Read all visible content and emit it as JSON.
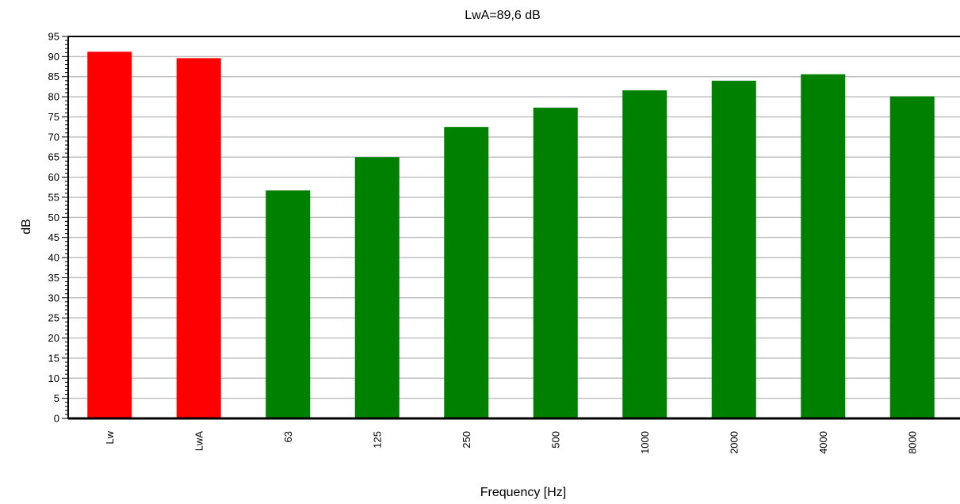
{
  "chart_data": {
    "type": "bar",
    "title": "LwA=89,6 dB",
    "xlabel": "Frequency [Hz]",
    "ylabel": "dB",
    "ylim": [
      0,
      95
    ],
    "y_ticks": [
      0,
      5,
      10,
      15,
      20,
      25,
      30,
      35,
      40,
      45,
      50,
      55,
      60,
      65,
      70,
      75,
      80,
      85,
      90,
      95
    ],
    "categories": [
      "Lw",
      "LwA",
      "63",
      "125",
      "250",
      "500",
      "1000",
      "2000",
      "4000",
      "8000"
    ],
    "values": [
      91.2,
      89.6,
      56.7,
      65.0,
      72.5,
      77.3,
      81.6,
      84.0,
      85.6,
      80.1
    ],
    "bar_colors": [
      "#ff0000",
      "#ff0000",
      "#008000",
      "#008000",
      "#008000",
      "#008000",
      "#008000",
      "#008000",
      "#008000",
      "#008000"
    ],
    "grid": true,
    "legend": "none"
  }
}
